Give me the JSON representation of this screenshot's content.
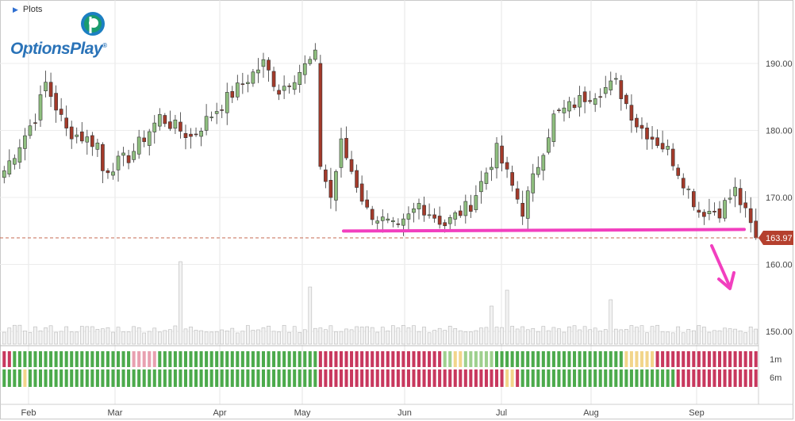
{
  "panel": {
    "title": "Plots"
  },
  "logo": {
    "text": "OptionsPlay",
    "mark": "®"
  },
  "colors": {
    "up": "#8fbf7f",
    "down": "#a33a2a",
    "support_line": "#f23fbf",
    "price_tag": "#b5402e",
    "up_strength": "#4caa4c",
    "down_strength": "#c8385e"
  },
  "chart_data": {
    "type": "candlestick",
    "x_labels": [
      "Feb",
      "Mar",
      "Apr",
      "May",
      "Jun",
      "Jul",
      "Aug",
      "Sep"
    ],
    "y_ticks": [
      150,
      160,
      170,
      180,
      190
    ],
    "y_tick_labels": [
      "150.00",
      "160.00",
      "170.00",
      "180.00",
      "190.00"
    ],
    "ylim": [
      147.3,
      198.5
    ],
    "last_price": 163.97,
    "last_price_label": "163.97",
    "support_level": 165.1,
    "annotation_arrow": "down",
    "grid": true,
    "strength_rows": [
      {
        "label": "1m"
      },
      {
        "label": "6m"
      }
    ],
    "price_anchors": [
      {
        "session": 0,
        "price": 174
      },
      {
        "session": 6,
        "price": 182
      },
      {
        "session": 8,
        "price": 187
      },
      {
        "session": 12,
        "price": 180
      },
      {
        "session": 18,
        "price": 178
      },
      {
        "session": 19,
        "price": 174
      },
      {
        "session": 24,
        "price": 176
      },
      {
        "session": 30,
        "price": 182
      },
      {
        "session": 36,
        "price": 179
      },
      {
        "session": 42,
        "price": 184
      },
      {
        "session": 50,
        "price": 190
      },
      {
        "session": 53,
        "price": 186
      },
      {
        "session": 60,
        "price": 191
      },
      {
        "session": 61,
        "price": 175
      },
      {
        "session": 63,
        "price": 170
      },
      {
        "session": 65,
        "price": 178
      },
      {
        "session": 70,
        "price": 168
      },
      {
        "session": 76,
        "price": 165
      },
      {
        "session": 80,
        "price": 169
      },
      {
        "session": 85,
        "price": 166
      },
      {
        "session": 90,
        "price": 169
      },
      {
        "session": 95,
        "price": 177
      },
      {
        "session": 100,
        "price": 168
      },
      {
        "session": 106,
        "price": 182
      },
      {
        "session": 112,
        "price": 185
      },
      {
        "session": 118,
        "price": 187
      },
      {
        "session": 122,
        "price": 181
      },
      {
        "session": 128,
        "price": 177
      },
      {
        "session": 134,
        "price": 168
      },
      {
        "session": 138,
        "price": 168
      },
      {
        "session": 141,
        "price": 171
      },
      {
        "session": 145,
        "price": 164
      }
    ],
    "volume_spikes": [
      {
        "session": 34,
        "value": 2.6
      },
      {
        "session": 59,
        "value": 1.8
      },
      {
        "session": 94,
        "value": 1.2
      },
      {
        "session": 97,
        "value": 1.7
      },
      {
        "session": 117,
        "value": 1.4
      }
    ]
  }
}
